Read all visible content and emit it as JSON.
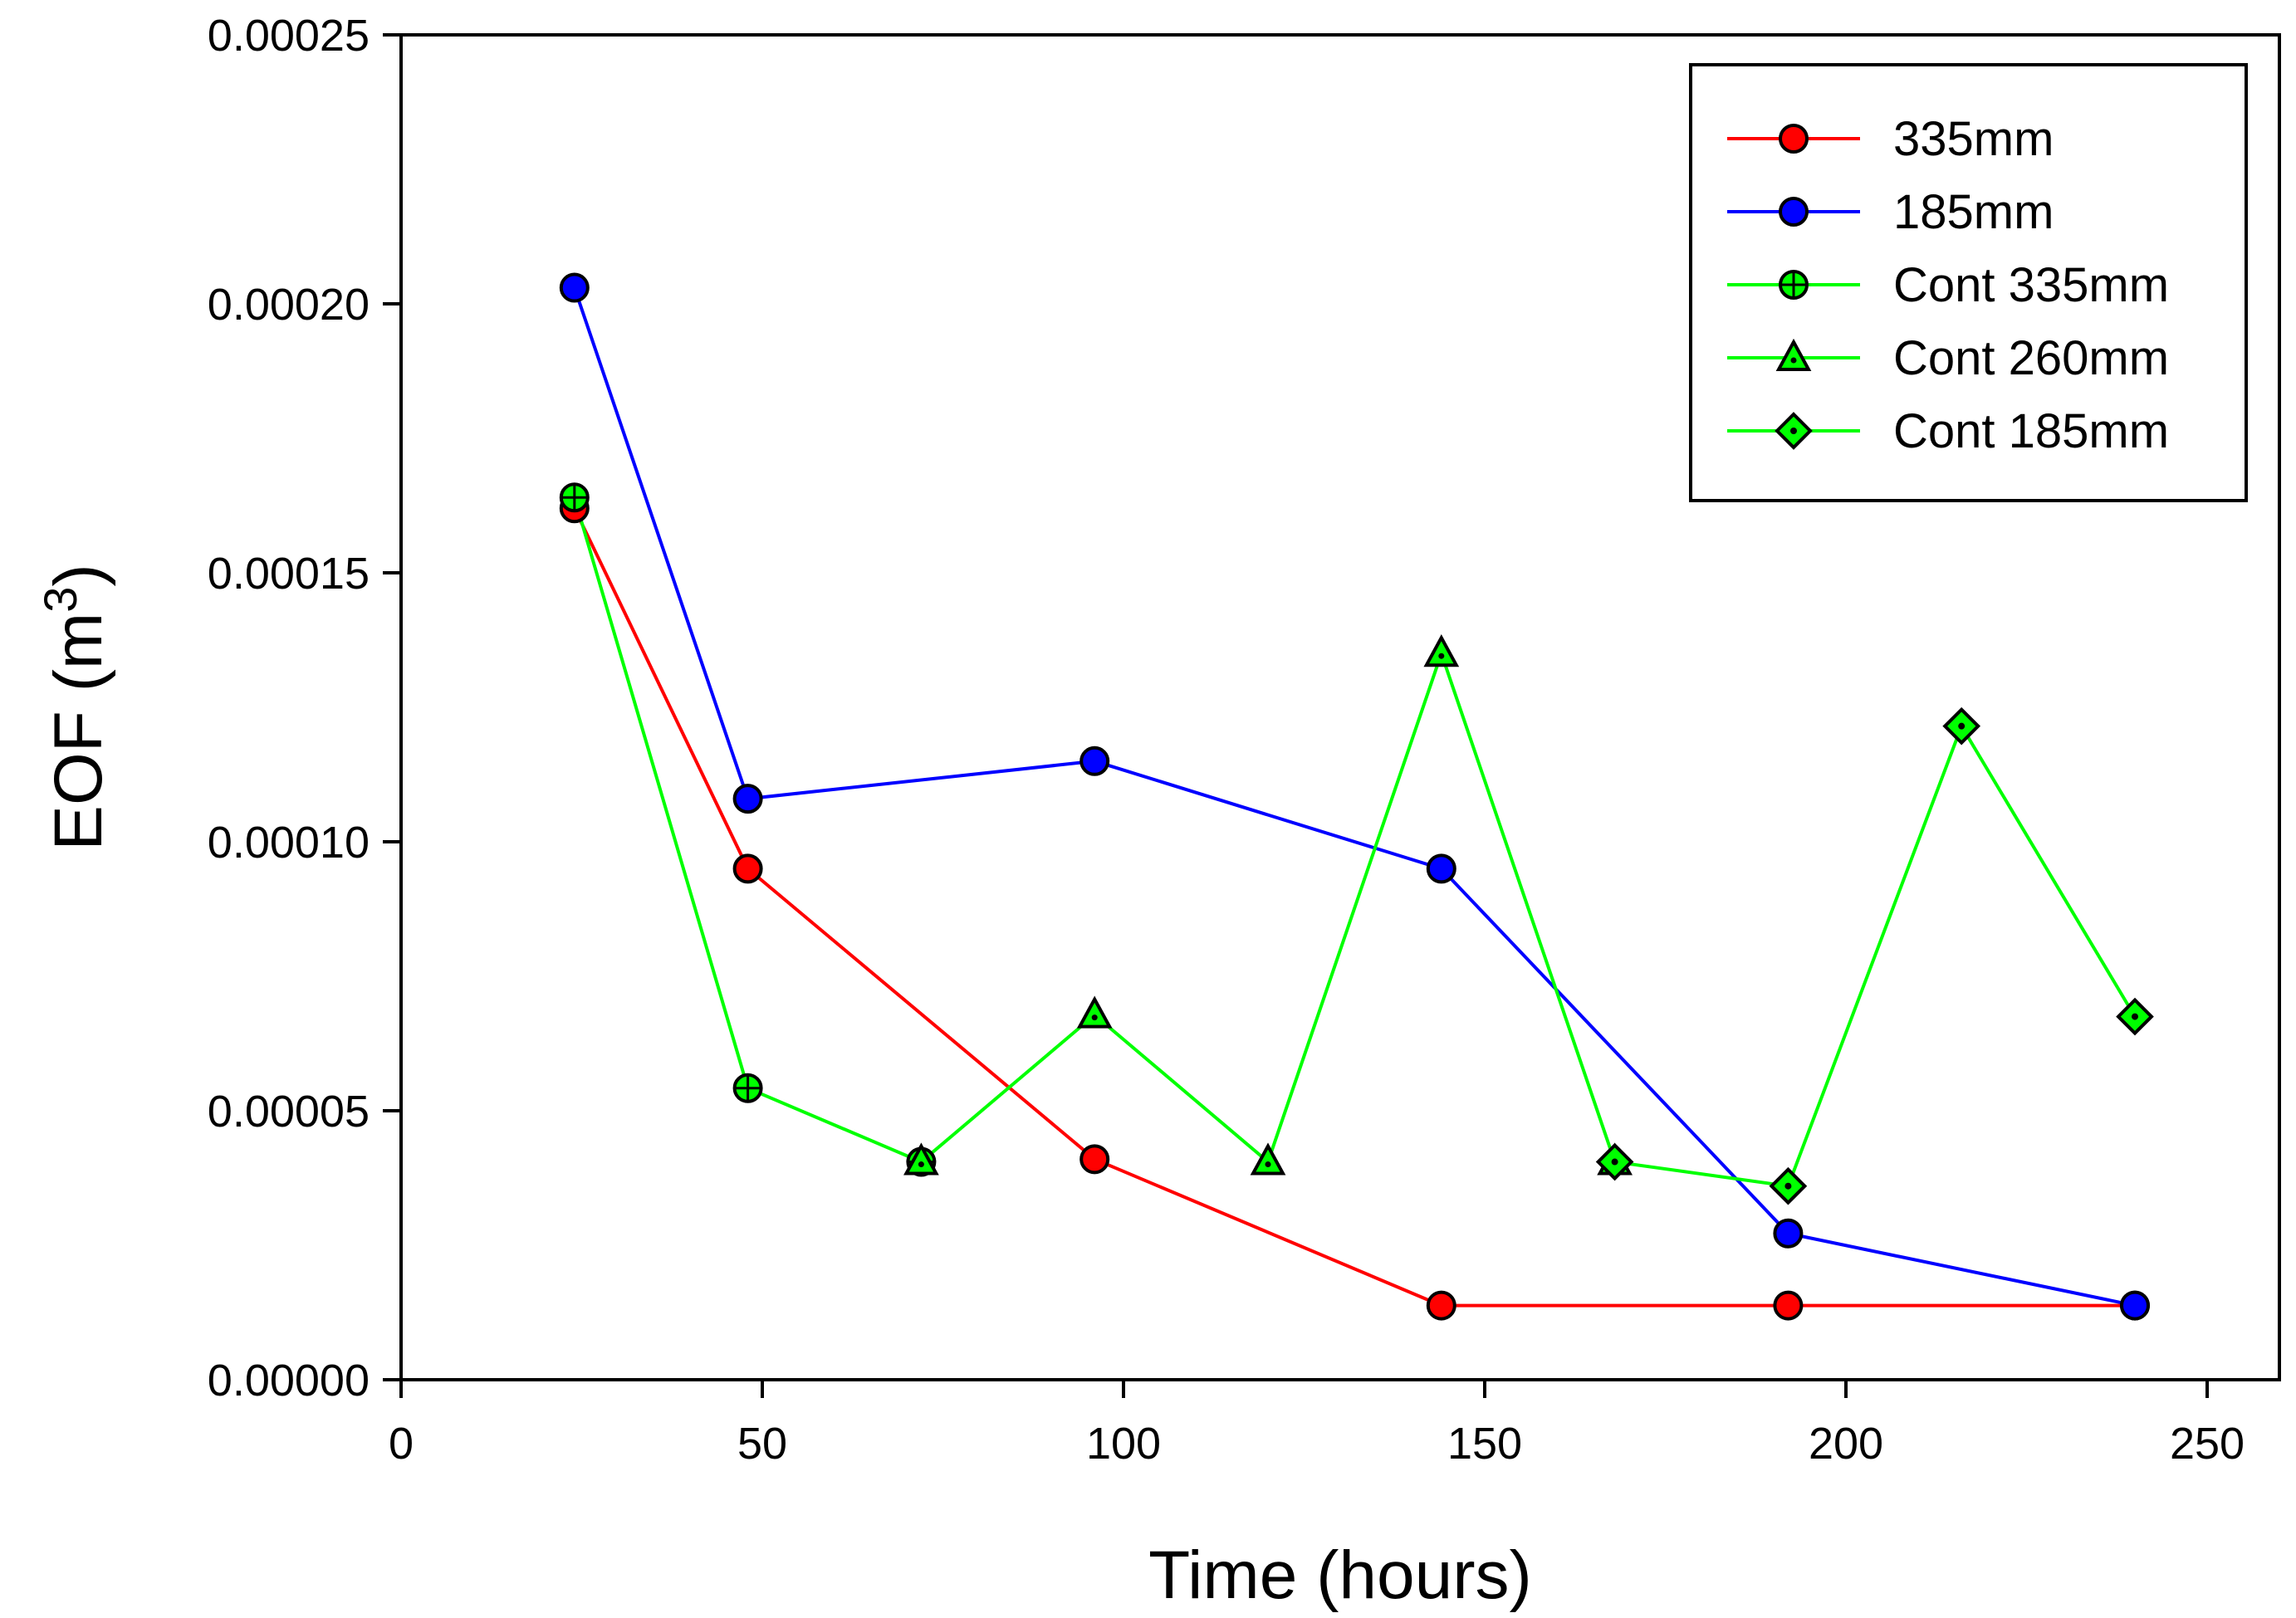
{
  "chart_data": {
    "type": "line",
    "xlabel": "Time (hours)",
    "ylabel": "EOF (m",
    "ylabel_sup": "3",
    "ylabel_close": ")",
    "xlim": [
      0,
      260
    ],
    "ylim": [
      0,
      0.00025
    ],
    "xticks": [
      0,
      50,
      100,
      150,
      200,
      250
    ],
    "xtick_labels": [
      "0",
      "50",
      "100",
      "150",
      "200",
      "250"
    ],
    "yticks": [
      0,
      5e-05,
      0.0001,
      0.00015,
      0.0002,
      0.00025
    ],
    "ytick_labels": [
      "0.00000",
      "0.00005",
      "0.00010",
      "0.00015",
      "0.00020",
      "0.00025"
    ],
    "grid": false,
    "legend_position": "top-right",
    "series": [
      {
        "name": "335mm",
        "color": "#ff0000",
        "marker": "circle",
        "marker_fill": "#ff0000",
        "x": [
          24,
          48,
          96,
          144,
          192,
          240
        ],
        "y": [
          0.000162,
          9.5e-05,
          4.1e-05,
          1.38e-05,
          1.38e-05,
          1.38e-05
        ]
      },
      {
        "name": "185mm",
        "color": "#0000ff",
        "marker": "circle",
        "marker_fill": "#0000ff",
        "x": [
          24,
          48,
          96,
          144,
          192,
          240
        ],
        "y": [
          0.000203,
          0.000108,
          0.000115,
          9.5e-05,
          2.72e-05,
          1.38e-05
        ]
      },
      {
        "name": "Cont 335mm",
        "color": "#00ff00",
        "marker": "circle-cross",
        "marker_fill": "#00ff00",
        "x": [
          24,
          48,
          72
        ],
        "y": [
          0.000164,
          5.42e-05,
          4.05e-05
        ]
      },
      {
        "name": "Cont 260mm",
        "color": "#00ff00",
        "marker": "triangle",
        "marker_fill": "#00ff00",
        "x": [
          72,
          96,
          120,
          144,
          168
        ],
        "y": [
          4.05e-05,
          6.78e-05,
          4.05e-05,
          0.000135,
          4.05e-05
        ]
      },
      {
        "name": "Cont 185mm",
        "color": "#00ff00",
        "marker": "diamond",
        "marker_fill": "#00ff00",
        "x": [
          168,
          192,
          216,
          240
        ],
        "y": [
          4.05e-05,
          3.6e-05,
          0.0001215,
          6.75e-05
        ]
      }
    ]
  }
}
